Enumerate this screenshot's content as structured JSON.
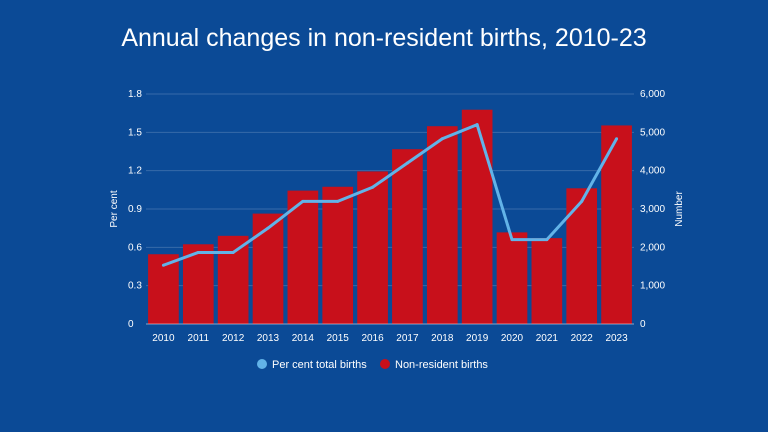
{
  "colors": {
    "background": "#0b4a96",
    "bar": "#c8101b",
    "line": "#62b3e8",
    "text": "#ffffff"
  },
  "chart_data": {
    "type": "bar",
    "title": "Annual changes in non-resident births, 2010-23",
    "categories": [
      "2010",
      "2011",
      "2012",
      "2013",
      "2014",
      "2015",
      "2016",
      "2017",
      "2018",
      "2019",
      "2020",
      "2021",
      "2022",
      "2023"
    ],
    "series": [
      {
        "name": "Non-resident births",
        "type": "bar",
        "axis": "right",
        "values": [
          1820,
          2080,
          2300,
          2880,
          3480,
          3580,
          3980,
          4560,
          5160,
          5590,
          2390,
          2240,
          3540,
          5180
        ]
      },
      {
        "name": "Per cent total births",
        "type": "line",
        "axis": "left",
        "values": [
          0.46,
          0.56,
          0.56,
          0.75,
          0.96,
          0.96,
          1.07,
          1.26,
          1.45,
          1.56,
          0.66,
          0.66,
          0.96,
          1.45
        ]
      }
    ],
    "y_left": {
      "label": "Per cent",
      "range": [
        0,
        1.8
      ],
      "ticks": [
        "0",
        "0.3",
        "0.6",
        "0.9",
        "1.2",
        "1.5",
        "1.8"
      ]
    },
    "y_right": {
      "label": "Number",
      "range": [
        0,
        6000
      ],
      "ticks": [
        "0",
        "1,000",
        "2,000",
        "3,000",
        "4,000",
        "5,000",
        "6,000"
      ]
    },
    "legend_position": "bottom-center",
    "grid": true
  }
}
